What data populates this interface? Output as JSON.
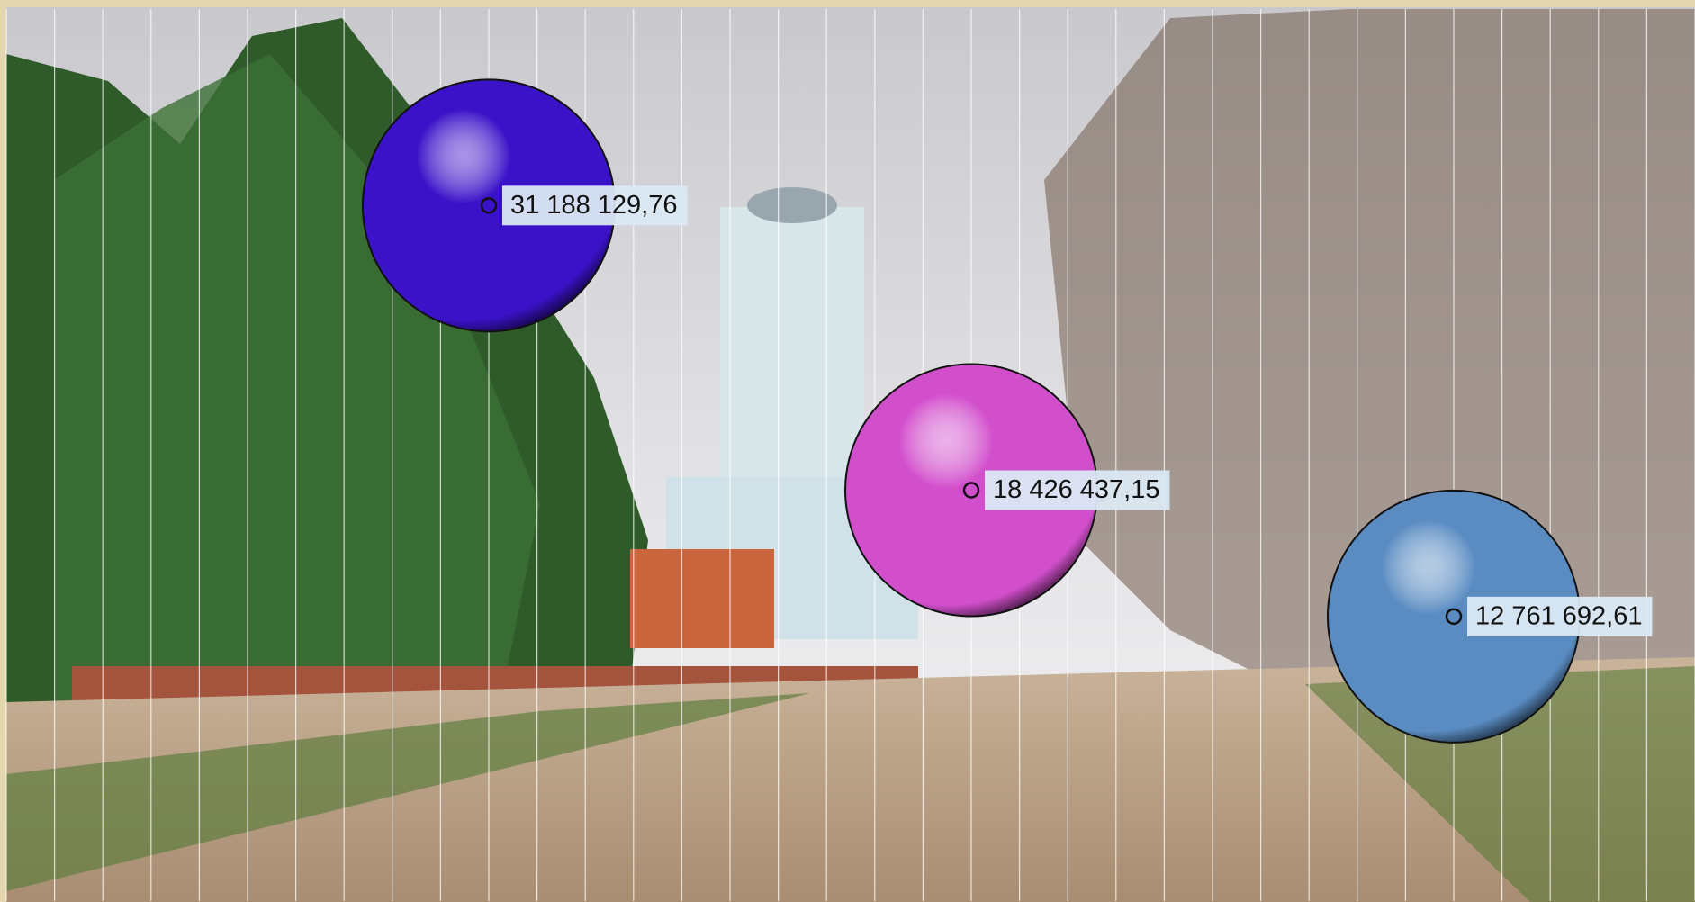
{
  "chart_data": {
    "type": "bubble",
    "x": [
      1,
      2,
      3
    ],
    "values": [
      31188129.76,
      18426437.15,
      12761692.61
    ],
    "value_labels": [
      "31 188 129,76",
      "18 426 437,15",
      "12 761 692,61"
    ],
    "colors": [
      "#3a12c8",
      "#d24fcc",
      "#5a8cc2"
    ],
    "xlim": [
      0,
      3.5
    ],
    "ylim": [
      0,
      40000000
    ],
    "xticks": [
      0,
      0.1,
      0.2,
      0.3,
      0.4,
      0.5,
      0.6,
      0.7,
      0.8,
      0.9,
      1,
      1.1,
      1.2,
      1.3,
      1.4,
      1.5,
      1.6,
      1.7,
      1.8,
      1.9,
      2,
      2.1,
      2.2,
      2.3,
      2.4,
      2.5,
      2.6,
      2.7,
      2.8,
      2.9,
      3,
      3.1,
      3.2,
      3.3,
      3.4,
      3.5
    ],
    "grid": true
  }
}
